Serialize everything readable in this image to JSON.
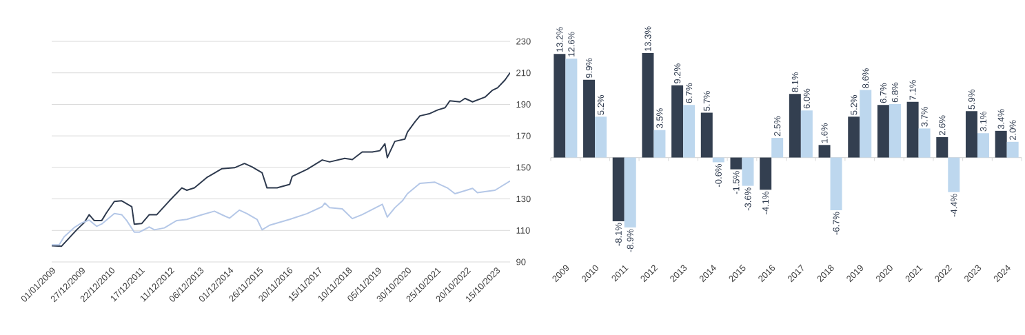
{
  "chart_data": [
    {
      "type": "line",
      "grid": "y",
      "xlim": [
        "2009-01",
        "2024-04"
      ],
      "ylim": [
        90,
        230
      ],
      "yticks": [
        90,
        110,
        130,
        150,
        170,
        190,
        210,
        230
      ],
      "xticks": [
        {
          "value": "2009-01-01",
          "label": "01/01/2009"
        },
        {
          "value": "2009-12-27",
          "label": "27/12/2009"
        },
        {
          "value": "2010-12-22",
          "label": "22/12/2010"
        },
        {
          "value": "2011-12-17",
          "label": "17/12/2011"
        },
        {
          "value": "2012-12-11",
          "label": "11/12/2012"
        },
        {
          "value": "2013-12-06",
          "label": "06/12/2013"
        },
        {
          "value": "2014-12-01",
          "label": "01/12/2014"
        },
        {
          "value": "2015-11-26",
          "label": "26/11/2015"
        },
        {
          "value": "2016-11-20",
          "label": "20/11/2016"
        },
        {
          "value": "2017-11-15",
          "label": "15/11/2017"
        },
        {
          "value": "2018-11-10",
          "label": "10/11/2018"
        },
        {
          "value": "2019-11-05",
          "label": "05/11/2019"
        },
        {
          "value": "2020-10-30",
          "label": "30/10/2020"
        },
        {
          "value": "2021-10-25",
          "label": "25/10/2021"
        },
        {
          "value": "2022-10-20",
          "label": "20/10/2022"
        },
        {
          "value": "2023-10-15",
          "label": "15/10/2023"
        }
      ],
      "series": [
        {
          "color": "#2e3a4e",
          "x": [
            "2009-01",
            "2009-05",
            "2009-11",
            "2010-02",
            "2010-04",
            "2010-06",
            "2010-09",
            "2010-11",
            "2011-02",
            "2011-05",
            "2011-09",
            "2011-10",
            "2012-01",
            "2012-04",
            "2012-07",
            "2012-12",
            "2013-05",
            "2013-07",
            "2013-10",
            "2014-03",
            "2014-09",
            "2015-02",
            "2015-06",
            "2015-09",
            "2016-01",
            "2016-03",
            "2016-07",
            "2016-12",
            "2017-01",
            "2017-07",
            "2018-01",
            "2018-04",
            "2018-10",
            "2019-01",
            "2019-05",
            "2019-09",
            "2019-12",
            "2020-02",
            "2020-03",
            "2020-06",
            "2020-10",
            "2020-11",
            "2021-02",
            "2021-04",
            "2021-08",
            "2021-11",
            "2022-02",
            "2022-04",
            "2022-08",
            "2022-10",
            "2023-01",
            "2023-06",
            "2023-09",
            "2023-11",
            "2024-02",
            "2024-04"
          ],
          "values": [
            100.3,
            100,
            110.4,
            115,
            120,
            116.3,
            116.3,
            121.5,
            128.4,
            128.8,
            125.1,
            114,
            114.4,
            120,
            120,
            128.8,
            137,
            135.5,
            137,
            143.6,
            149.2,
            149.8,
            152.5,
            150.3,
            146.6,
            137,
            137,
            139.2,
            144.3,
            148.8,
            154.7,
            153.5,
            155.7,
            155,
            159.8,
            159.8,
            160.6,
            165,
            156.2,
            166.5,
            168,
            172.4,
            179,
            182.7,
            184.2,
            186.4,
            187.9,
            192.3,
            191.6,
            193.8,
            191.6,
            194.6,
            199,
            200.5,
            205.6,
            210.1
          ]
        },
        {
          "color": "#b4c7e7",
          "x": [
            "2009-01",
            "2009-04",
            "2009-06",
            "2009-10",
            "2010-01",
            "2010-04",
            "2010-07",
            "2010-09",
            "2011-02",
            "2011-05",
            "2011-07",
            "2011-10",
            "2011-12",
            "2012-04",
            "2012-06",
            "2012-10",
            "2013-03",
            "2013-07",
            "2014-01",
            "2014-06",
            "2014-10",
            "2014-12",
            "2015-04",
            "2015-07",
            "2015-11",
            "2016-01",
            "2016-04",
            "2016-12",
            "2017-07",
            "2018-01",
            "2018-02",
            "2018-04",
            "2018-09",
            "2019-01",
            "2019-05",
            "2020-01",
            "2020-03",
            "2020-06",
            "2020-09",
            "2020-11",
            "2021-04",
            "2021-10",
            "2022-03",
            "2022-06",
            "2022-09",
            "2023-01",
            "2023-03",
            "2023-10",
            "2024-04"
          ],
          "values": [
            100.8,
            100.8,
            106,
            111.8,
            114.8,
            116.6,
            112.6,
            114.1,
            120.7,
            120,
            116.3,
            108.9,
            108.9,
            112.2,
            110.4,
            111.6,
            116.3,
            117,
            120,
            122.2,
            119.2,
            117.8,
            122.9,
            120.7,
            117,
            110.4,
            113.3,
            117,
            120.7,
            125.1,
            127.4,
            124.4,
            123.7,
            117.5,
            120,
            126.6,
            118.5,
            124.4,
            128.8,
            133.3,
            139.9,
            140.6,
            137,
            133.3,
            134.7,
            136.7,
            134,
            135.5,
            141.4
          ]
        }
      ]
    },
    {
      "type": "bar",
      "categories": [
        "2009",
        "2010",
        "2011",
        "2012",
        "2013",
        "2014",
        "2015",
        "2016",
        "2017",
        "2018",
        "2019",
        "2020",
        "2021",
        "2022",
        "2023",
        "2024"
      ],
      "series": [
        {
          "color": "#333f50",
          "values": [
            13.2,
            9.9,
            -8.1,
            13.3,
            9.2,
            5.7,
            -1.5,
            -4.1,
            8.1,
            1.6,
            5.2,
            6.7,
            7.1,
            2.6,
            5.9,
            3.4
          ],
          "value_labels": [
            "13.2%",
            "9.9%",
            "-8.1%",
            "13.3%",
            "9.2%",
            "5.7%",
            "-1.5%",
            "-4.1%",
            "8.1%",
            "1.6%",
            "5.2%",
            "6.7%",
            "7.1%",
            "2.6%",
            "5.9%",
            "3.4%"
          ]
        },
        {
          "color": "#bdd7ee",
          "values": [
            12.6,
            5.2,
            -8.9,
            3.5,
            6.7,
            -0.6,
            -3.6,
            2.5,
            6.0,
            -6.7,
            8.6,
            6.8,
            3.7,
            -4.4,
            3.1,
            2.0
          ],
          "value_labels": [
            "12.6%",
            "5.2%",
            "-8.9%",
            "3.5%",
            "6.7%",
            "-0.6%",
            "-3.6%",
            "2.5%",
            "6.0%",
            "-6.7%",
            "8.6%",
            "6.8%",
            "3.7%",
            "-4.4%",
            "3.1%",
            "2.0%"
          ]
        }
      ]
    }
  ]
}
